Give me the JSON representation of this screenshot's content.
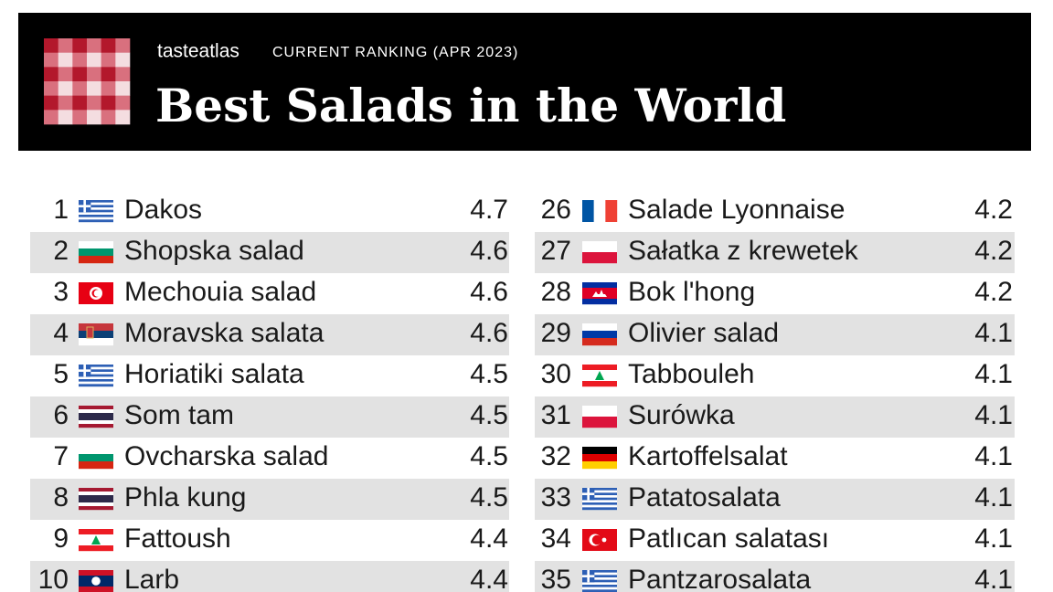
{
  "header": {
    "brand": "tasteatlas",
    "subtitle": "CURRENT RANKING (APR 2023)",
    "title": "Best Salads in the World"
  },
  "table": {
    "rows": [
      [
        1,
        "Dakos",
        4.7
      ],
      [
        2,
        "Shopska salad",
        4.6
      ],
      [
        3,
        "Mechouia salad",
        4.6
      ],
      [
        4,
        "Moravska salata",
        4.6
      ],
      [
        5,
        "Horiatiki salata",
        4.5
      ],
      [
        6,
        "Som tam",
        4.5
      ],
      [
        7,
        "Ovcharska salad",
        4.5
      ],
      [
        8,
        "Phla kung",
        4.5
      ],
      [
        9,
        "Fattoush",
        4.4
      ],
      [
        10,
        "Larb",
        4.4
      ],
      [
        26,
        "Salade Lyonnaise",
        4.2
      ],
      [
        27,
        "Sałatka z krewetek",
        4.2
      ],
      [
        28,
        "Bok l'hong",
        4.2
      ],
      [
        29,
        "Olivier salad",
        4.1
      ],
      [
        30,
        "Tabbouleh",
        4.1
      ],
      [
        31,
        "Surówka",
        4.1
      ],
      [
        32,
        "Kartoffelsalat",
        4.1
      ],
      [
        33,
        "Patatosalata",
        4.1
      ],
      [
        34,
        "Patlıcan salatası",
        4.1
      ],
      [
        35,
        "Pantzarosalata",
        4.1
      ]
    ]
  }
}
